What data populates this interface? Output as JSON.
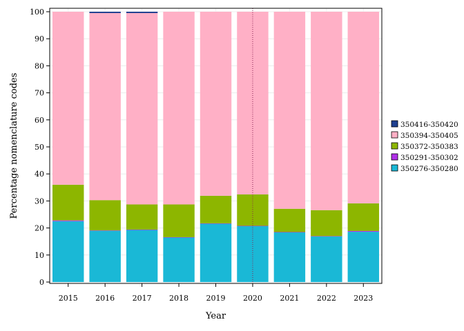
{
  "chart_data": {
    "type": "bar",
    "stacked": true,
    "title": "",
    "xlabel": "Year",
    "ylabel": "Percentage nomenclature codes",
    "ylim": [
      0,
      100
    ],
    "yticks": [
      0,
      10,
      20,
      30,
      40,
      50,
      60,
      70,
      80,
      90,
      100
    ],
    "grid": true,
    "legend_position": "right",
    "reference_line": {
      "x": "2020",
      "style": "dotted",
      "color": "#8b2252"
    },
    "categories": [
      "2015",
      "2016",
      "2017",
      "2018",
      "2019",
      "2020",
      "2021",
      "2022",
      "2023"
    ],
    "series": [
      {
        "name": "350276-350280",
        "color": "#1ab8d6",
        "values": [
          22.5,
          19.0,
          19.3,
          16.5,
          21.6,
          20.7,
          18.4,
          16.9,
          18.6
        ]
      },
      {
        "name": "350291-350302",
        "color": "#b030e8",
        "values": [
          0.3,
          0.1,
          0.1,
          0.1,
          0.1,
          0.1,
          0.1,
          0.1,
          0.3
        ]
      },
      {
        "name": "350372-350383",
        "color": "#8db600",
        "values": [
          13.2,
          11.2,
          9.3,
          12.1,
          10.2,
          11.6,
          8.6,
          9.6,
          10.2
        ]
      },
      {
        "name": "350394-350405",
        "color": "#ffb0c6",
        "values": [
          64.0,
          69.2,
          70.8,
          71.3,
          68.1,
          67.6,
          72.9,
          73.4,
          70.9
        ]
      },
      {
        "name": "350416-350420",
        "color": "#1f3f8f",
        "values": [
          0.0,
          0.5,
          0.5,
          0.0,
          0.0,
          0.0,
          0.0,
          0.0,
          0.0
        ]
      }
    ]
  }
}
